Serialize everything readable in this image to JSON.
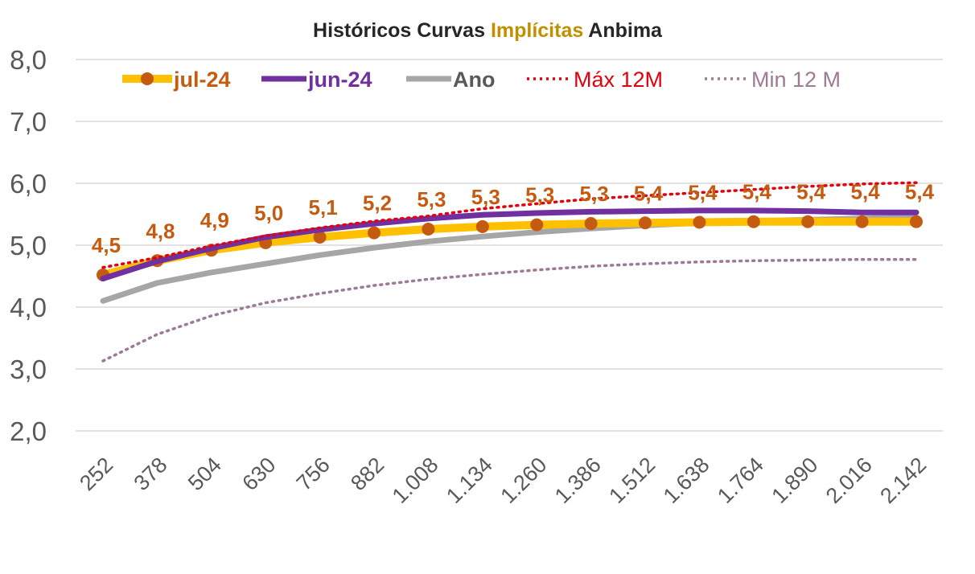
{
  "chart_data": {
    "type": "line",
    "title_parts": [
      {
        "text": "Históricos Curvas ",
        "color": "#262626"
      },
      {
        "text": "Implícitas",
        "color": "#BF9000"
      },
      {
        "text": " Anbima",
        "color": "#262626"
      }
    ],
    "categories": [
      "252",
      "378",
      "504",
      "630",
      "756",
      "882",
      "1.008",
      "1.134",
      "1.260",
      "1.386",
      "1.512",
      "1.638",
      "1.764",
      "1.890",
      "2.016",
      "2.142"
    ],
    "ylim": [
      2.0,
      8.0
    ],
    "yticks": [
      "2,0",
      "3,0",
      "4,0",
      "5,0",
      "6,0",
      "7,0",
      "8,0"
    ],
    "grid": true,
    "legend_position": "top",
    "series": [
      {
        "name": "jul-24",
        "color": "#FFC000",
        "marker_color": "#C55A11",
        "label_color": "#C55A11",
        "style": "thick-markers",
        "values": [
          4.52,
          4.75,
          4.92,
          5.04,
          5.13,
          5.2,
          5.26,
          5.3,
          5.33,
          5.35,
          5.36,
          5.37,
          5.38,
          5.38,
          5.38,
          5.38
        ],
        "data_labels": [
          "4,5",
          "4,8",
          "4,9",
          "5,0",
          "5,1",
          "5,2",
          "5,3",
          "5,3",
          "5,3",
          "5,3",
          "5,4",
          "5,4",
          "5,4",
          "5,4",
          "5,4",
          "5,4"
        ]
      },
      {
        "name": "jun-24",
        "color": "#7030A0",
        "label_color": "#7030A0",
        "style": "thick",
        "values": [
          4.46,
          4.74,
          4.95,
          5.13,
          5.25,
          5.35,
          5.43,
          5.49,
          5.52,
          5.54,
          5.55,
          5.56,
          5.56,
          5.55,
          5.53,
          5.53
        ]
      },
      {
        "name": "Ano",
        "color": "#A6A6A6",
        "label_color": "#595959",
        "style": "thick",
        "values": [
          4.1,
          4.39,
          4.56,
          4.7,
          4.84,
          4.96,
          5.06,
          5.14,
          5.21,
          5.27,
          5.32,
          5.36,
          5.39,
          5.41,
          5.43,
          5.45
        ]
      },
      {
        "name": "Máx 12M",
        "color": "#E3000F",
        "label_color": "#E3000F",
        "style": "dotted",
        "values": [
          4.64,
          4.8,
          4.99,
          5.15,
          5.28,
          5.39,
          5.47,
          5.59,
          5.67,
          5.75,
          5.8,
          5.85,
          5.9,
          5.95,
          5.99,
          6.01
        ]
      },
      {
        "name": "Min 12 M",
        "color": "#9E7A97",
        "label_color": "#9E7A97",
        "style": "dotted",
        "values": [
          3.13,
          3.56,
          3.86,
          4.07,
          4.22,
          4.35,
          4.45,
          4.53,
          4.6,
          4.66,
          4.7,
          4.73,
          4.75,
          4.76,
          4.77,
          4.77
        ]
      }
    ]
  }
}
